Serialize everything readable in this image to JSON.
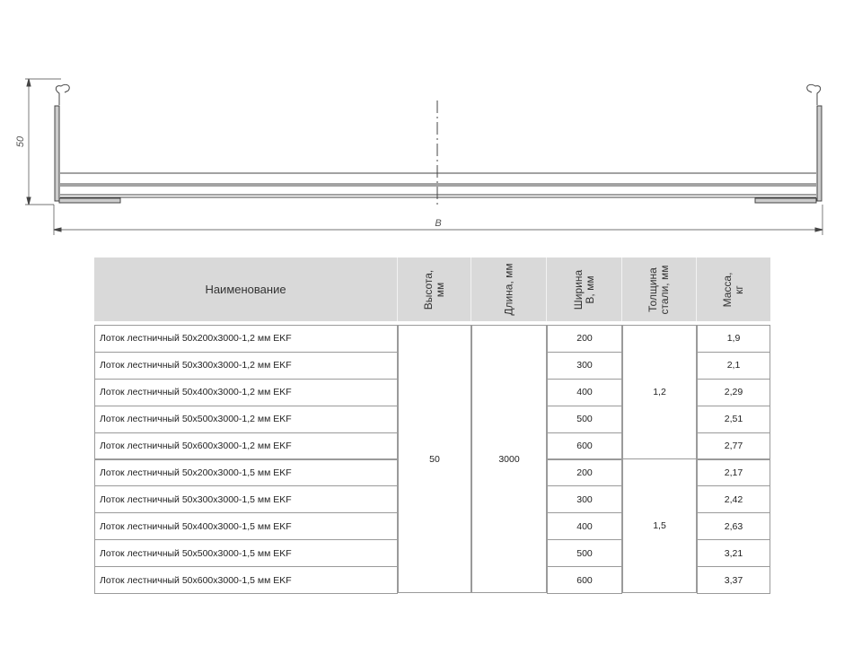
{
  "drawing": {
    "height_dim": "50",
    "width_dim": "B"
  },
  "table": {
    "headers": {
      "name": "Наименование",
      "height": "Высота,\nмм",
      "length": "Длина, мм",
      "width": "Ширина\nВ, мм",
      "thickness": "Толщина\nстали, мм",
      "mass": "Масса,\nкг"
    },
    "height_value": "50",
    "length_value": "3000",
    "thickness_groups": [
      "1,2",
      "1,5"
    ],
    "rows": [
      {
        "name": "Лоток лестничный 50x200x3000-1,2 мм EKF",
        "width": "200",
        "mass": "1,9"
      },
      {
        "name": "Лоток лестничный 50x300x3000-1,2 мм EKF",
        "width": "300",
        "mass": "2,1"
      },
      {
        "name": "Лоток лестничный 50x400x3000-1,2 мм EKF",
        "width": "400",
        "mass": "2,29"
      },
      {
        "name": "Лоток лестничный 50x500x3000-1,2 мм EKF",
        "width": "500",
        "mass": "2,51"
      },
      {
        "name": "Лоток лестничный 50x600x3000-1,2 мм EKF",
        "width": "600",
        "mass": "2,77"
      },
      {
        "name": "Лоток лестничный 50x200x3000-1,5 мм EKF",
        "width": "200",
        "mass": "2,17"
      },
      {
        "name": "Лоток лестничный 50x300x3000-1,5 мм EKF",
        "width": "300",
        "mass": "2,42"
      },
      {
        "name": "Лоток лестничный 50x400x3000-1,5 мм EKF",
        "width": "400",
        "mass": "2,63"
      },
      {
        "name": "Лоток лестничный 50x500x3000-1,5 мм EKF",
        "width": "500",
        "mass": "3,21"
      },
      {
        "name": "Лоток лестничный 50x600x3000-1,5 мм EKF",
        "width": "600",
        "mass": "3,37"
      }
    ]
  }
}
